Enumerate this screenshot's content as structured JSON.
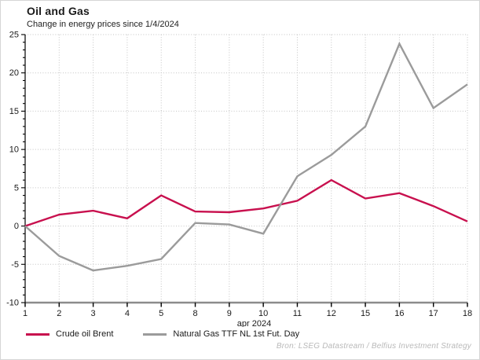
{
  "header": {
    "title": "Oil and Gas",
    "subtitle": "Change in energy prices since 1/4/2024"
  },
  "chart_data": {
    "type": "line",
    "x_categories": [
      "1",
      "2",
      "3",
      "4",
      "5",
      "8",
      "9",
      "10",
      "11",
      "12",
      "15",
      "16",
      "17",
      "18"
    ],
    "xlabel": "apr 2024",
    "ylabel": "",
    "ylim": [
      -10,
      25
    ],
    "ytick_step": 5,
    "ytick_minor_step": 1,
    "grid": "dotted",
    "legend_position": "bottom-left",
    "series": [
      {
        "name": "Crude oil Brent",
        "color": "#c8104e",
        "values": [
          0.0,
          1.5,
          2.0,
          1.0,
          4.0,
          1.9,
          1.8,
          2.3,
          3.3,
          6.0,
          3.6,
          4.3,
          2.6,
          0.6
        ]
      },
      {
        "name": "Natural Gas TTF NL 1st Fut. Day",
        "color": "#9b9b9b",
        "values": [
          0.0,
          -3.9,
          -5.8,
          -5.2,
          -4.3,
          0.4,
          0.2,
          -1.0,
          6.5,
          9.3,
          13.0,
          23.8,
          15.4,
          18.5
        ]
      }
    ]
  },
  "footer": {
    "source": "Bron: LSEG Datastream / Belfius Investment Strategy"
  }
}
